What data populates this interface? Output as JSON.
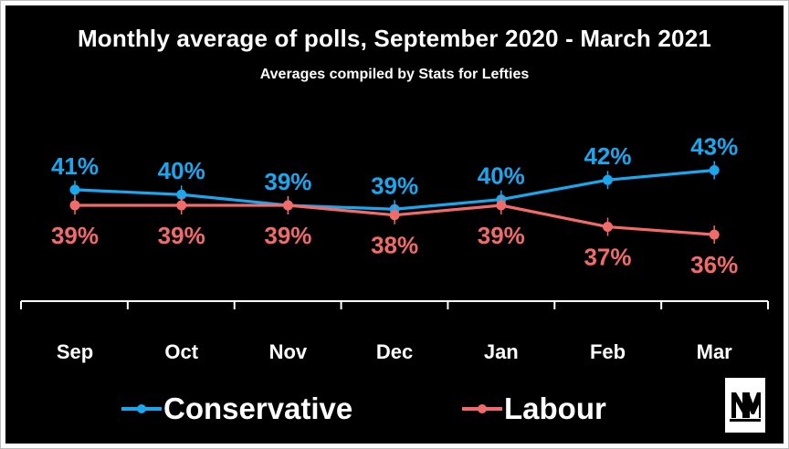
{
  "chart_data": {
    "type": "line",
    "title": "Monthly average of polls, September 2020 - March 2021",
    "subtitle": "Averages compiled by Stats for Lefties",
    "categories": [
      "Sep",
      "Oct",
      "Nov",
      "Dec",
      "Jan",
      "Feb",
      "Mar"
    ],
    "series": [
      {
        "name": "Conservative",
        "color": "#1aa7ee",
        "values": [
          41,
          40.5,
          39.4,
          39,
          40,
          42,
          43
        ],
        "labels": [
          "41%",
          "40%",
          "39%",
          "39%",
          "40%",
          "42%",
          "43%"
        ]
      },
      {
        "name": "Labour",
        "color": "#f26b6b",
        "values": [
          39.4,
          39.4,
          39.4,
          38.4,
          39.4,
          37.2,
          36.4
        ],
        "labels": [
          "39%",
          "39%",
          "39%",
          "38%",
          "39%",
          "37%",
          "36%"
        ]
      }
    ],
    "grid": false,
    "legend_position": "bottom",
    "background": "#000000",
    "text_color": "#ffffff",
    "axis_color": "#ffffff"
  },
  "logo": {
    "name": "nm-logo-icon"
  }
}
